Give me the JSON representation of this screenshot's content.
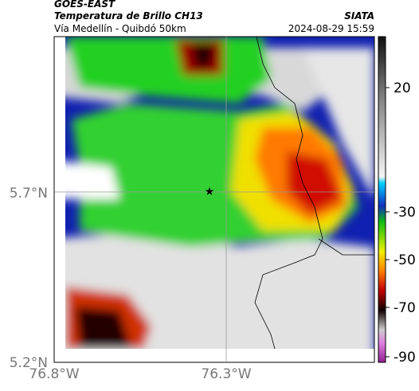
{
  "header": {
    "source": "GOES-EAST",
    "title": "Temperatura de Brillo CH13",
    "org": "SIATA",
    "subtitle": "Vía Medellín - Quibdó 50km",
    "datetime": "2024-08-29 15:59"
  },
  "axes": {
    "x_labels": [
      "76.8°W",
      "76.3°W"
    ],
    "y_labels": [
      "5.7°N",
      "5.2°N"
    ]
  },
  "colorbar": {
    "ticks": [
      "20",
      "-30",
      "-50",
      "-70",
      "-90"
    ]
  }
}
